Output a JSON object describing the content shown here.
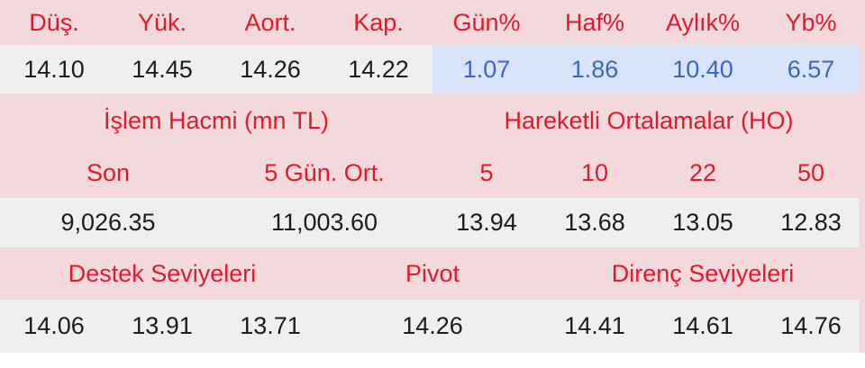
{
  "colors": {
    "header_bg": "#f3d9dc",
    "header_text": "#e01a2d",
    "value_bg": "#f0eff0",
    "value_text": "#1d1b20",
    "percent_bg": "#d9e3f9",
    "percent_text": "#3a68bd",
    "page_bg": "#ffffff"
  },
  "summary": {
    "headers": [
      "Düş.",
      "Yük.",
      "Aort.",
      "Kap.",
      "Gün%",
      "Haf%",
      "Aylık%",
      "Yb%"
    ],
    "values": [
      "14.10",
      "14.45",
      "14.26",
      "14.22",
      "1.07",
      "1.86",
      "10.40",
      "6.57"
    ]
  },
  "volume": {
    "title": "İşlem Hacmi (mn TL)",
    "last_label": "Son",
    "avg5_label": "5 Gün. Ort.",
    "last_value": "9,026.35",
    "avg5_value": "11,003.60"
  },
  "moving_averages": {
    "title": "Hareketli Ortalamalar (HO)",
    "periods": [
      "5",
      "10",
      "22",
      "50"
    ],
    "values": [
      "13.94",
      "13.68",
      "13.05",
      "12.83"
    ]
  },
  "levels": {
    "support_title": "Destek Seviyeleri",
    "pivot_title": "Pivot",
    "resistance_title": "Direnç Seviyeleri",
    "support": [
      "14.06",
      "13.91",
      "13.71"
    ],
    "pivot": "14.26",
    "resistance": [
      "14.41",
      "14.61",
      "14.76"
    ]
  }
}
